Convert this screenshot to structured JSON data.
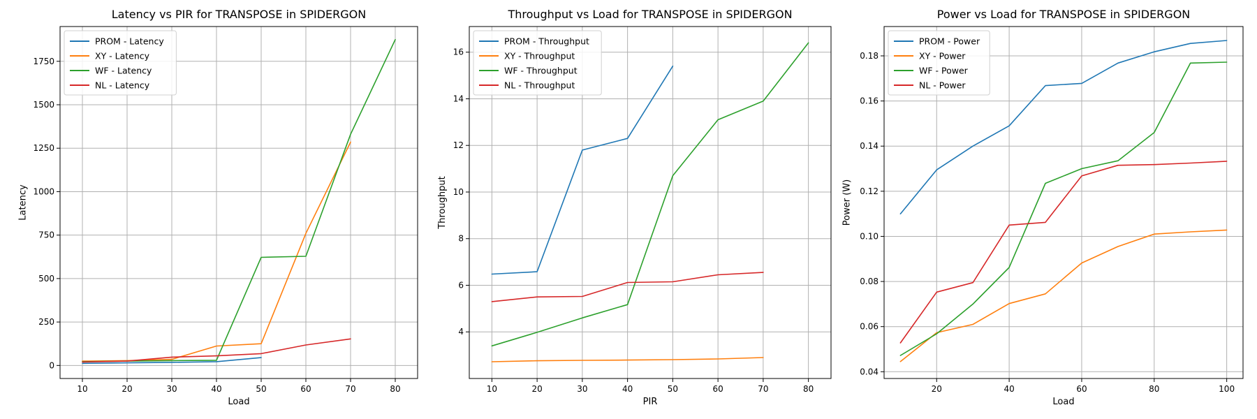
{
  "chart_data": [
    {
      "type": "line",
      "title": "Latency vs PIR for TRANSPOSE in SPIDERGON",
      "xlabel": "Load",
      "ylabel": "Latency",
      "xlim": [
        5,
        85
      ],
      "ylim": [
        -75,
        1950
      ],
      "xticks": [
        10,
        20,
        30,
        40,
        50,
        60,
        70,
        80
      ],
      "xtick_labels": [
        "10",
        "20",
        "30",
        "40",
        "50",
        "60",
        "70",
        "80"
      ],
      "yticks": [
        0,
        250,
        500,
        750,
        1000,
        1250,
        1500,
        1750
      ],
      "ytick_labels": [
        "0",
        "250",
        "500",
        "750",
        "1000",
        "1250",
        "1500",
        "1750"
      ],
      "grid": true,
      "legend_position": "top-left",
      "series": [
        {
          "name": "PROM - Latency",
          "color": "#1f77b4",
          "x": [
            10,
            20,
            30,
            40,
            50
          ],
          "y": [
            12,
            15,
            18,
            22,
            45
          ]
        },
        {
          "name": "XY - Latency",
          "color": "#ff7f0e",
          "x": [
            10,
            20,
            30,
            40,
            50,
            60,
            70
          ],
          "y": [
            25,
            28,
            35,
            112,
            125,
            760,
            1285
          ]
        },
        {
          "name": "WF - Latency",
          "color": "#2ca02c",
          "x": [
            10,
            20,
            30,
            40,
            50,
            60,
            70,
            80
          ],
          "y": [
            22,
            25,
            28,
            30,
            622,
            628,
            1330,
            1875
          ]
        },
        {
          "name": "NL - Latency",
          "color": "#d62728",
          "x": [
            10,
            20,
            30,
            40,
            50,
            60,
            70
          ],
          "y": [
            20,
            25,
            48,
            55,
            68,
            118,
            153
          ]
        }
      ]
    },
    {
      "type": "line",
      "title": "Throughput vs Load for TRANSPOSE in SPIDERGON",
      "xlabel": "PIR",
      "ylabel": "Throughput",
      "xlim": [
        5,
        85
      ],
      "ylim": [
        2.0,
        17.1
      ],
      "xticks": [
        10,
        20,
        30,
        40,
        50,
        60,
        70,
        80
      ],
      "xtick_labels": [
        "10",
        "20",
        "30",
        "40",
        "50",
        "60",
        "70",
        "80"
      ],
      "yticks": [
        4,
        6,
        8,
        10,
        12,
        14,
        16
      ],
      "ytick_labels": [
        "4",
        "6",
        "8",
        "10",
        "12",
        "14",
        "16"
      ],
      "grid": true,
      "legend_position": "top-left",
      "series": [
        {
          "name": "PROM - Throughput",
          "color": "#1f77b4",
          "x": [
            10,
            20,
            30,
            40,
            50
          ],
          "y": [
            6.48,
            6.58,
            11.8,
            12.3,
            15.4
          ]
        },
        {
          "name": "XY - Throughput",
          "color": "#ff7f0e",
          "x": [
            10,
            20,
            30,
            40,
            50,
            60,
            70
          ],
          "y": [
            2.72,
            2.76,
            2.78,
            2.79,
            2.81,
            2.84,
            2.9
          ]
        },
        {
          "name": "WF - Throughput",
          "color": "#2ca02c",
          "x": [
            10,
            20,
            30,
            40,
            50,
            60,
            70,
            80
          ],
          "y": [
            3.4,
            3.98,
            4.6,
            5.17,
            10.7,
            13.1,
            13.9,
            16.4
          ]
        },
        {
          "name": "NL - Throughput",
          "color": "#d62728",
          "x": [
            10,
            20,
            30,
            40,
            50,
            60,
            70
          ],
          "y": [
            5.3,
            5.5,
            5.52,
            6.12,
            6.15,
            6.45,
            6.55
          ]
        }
      ]
    },
    {
      "type": "line",
      "title": "Power vs Load for TRANSPOSE in SPIDERGON",
      "xlabel": "Load",
      "ylabel": "Power (W)",
      "xlim": [
        5.5,
        104.5
      ],
      "ylim": [
        0.037,
        0.193
      ],
      "xticks": [
        20,
        40,
        60,
        80,
        100
      ],
      "xtick_labels": [
        "20",
        "40",
        "60",
        "80",
        "100"
      ],
      "yticks": [
        0.04,
        0.06,
        0.08,
        0.1,
        0.12,
        0.14,
        0.16,
        0.18
      ],
      "ytick_labels": [
        "0.04",
        "0.06",
        "0.08",
        "0.10",
        "0.12",
        "0.14",
        "0.16",
        "0.18"
      ],
      "grid": true,
      "legend_position": "top-left",
      "series": [
        {
          "name": "PROM - Power",
          "color": "#1f77b4",
          "x": [
            10,
            20,
            30,
            40,
            50,
            60,
            70,
            80,
            90,
            100
          ],
          "y": [
            0.11,
            0.1295,
            0.14,
            0.149,
            0.1668,
            0.1678,
            0.1768,
            0.1818,
            0.1855,
            0.1868
          ]
        },
        {
          "name": "XY - Power",
          "color": "#ff7f0e",
          "x": [
            10,
            20,
            30,
            40,
            50,
            60,
            70,
            80,
            90,
            100
          ],
          "y": [
            0.0445,
            0.0573,
            0.061,
            0.0702,
            0.0745,
            0.0882,
            0.0955,
            0.101,
            0.102,
            0.1028
          ]
        },
        {
          "name": "WF - Power",
          "color": "#2ca02c",
          "x": [
            10,
            20,
            30,
            40,
            50,
            60,
            70,
            80,
            90,
            100
          ],
          "y": [
            0.0472,
            0.0568,
            0.07,
            0.0862,
            0.1235,
            0.13,
            0.1335,
            0.146,
            0.1768,
            0.1772
          ]
        },
        {
          "name": "NL - Power",
          "color": "#d62728",
          "x": [
            10,
            20,
            30,
            40,
            50,
            60,
            70,
            80,
            90,
            100
          ],
          "y": [
            0.0528,
            0.0753,
            0.0795,
            0.105,
            0.1062,
            0.1268,
            0.1315,
            0.1318,
            0.1325,
            0.1333
          ]
        }
      ]
    }
  ]
}
